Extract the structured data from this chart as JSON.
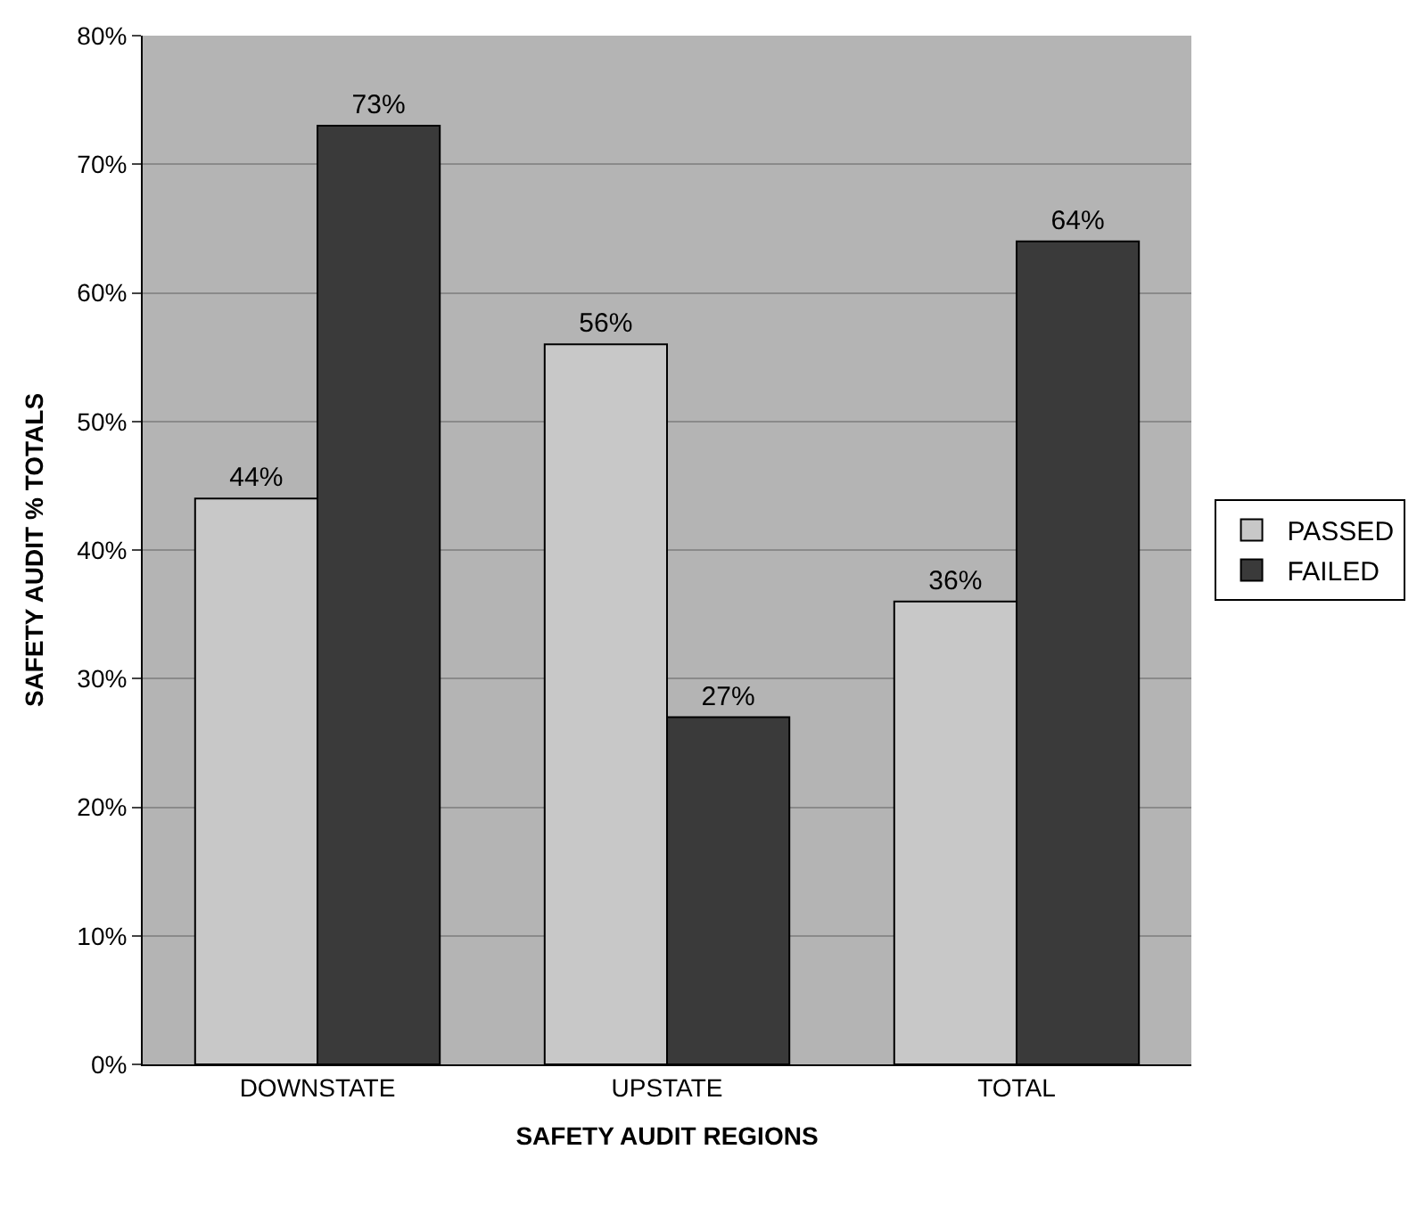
{
  "chart_data": {
    "type": "bar",
    "xlabel": "SAFETY AUDIT REGIONS",
    "ylabel": "SAFETY AUDIT % TOTALS",
    "categories": [
      "DOWNSTATE",
      "UPSTATE",
      "TOTAL"
    ],
    "series": [
      {
        "name": "PASSED",
        "color": "#c8c8c8",
        "values": [
          44,
          56,
          36
        ],
        "value_labels": [
          "44%",
          "56%",
          "36%"
        ]
      },
      {
        "name": "FAILED",
        "color": "#3a3a3a",
        "values": [
          73,
          27,
          64
        ],
        "value_labels": [
          "73%",
          "27%",
          "64%"
        ]
      }
    ],
    "ylim": [
      0,
      80
    ],
    "yticks": [
      {
        "value": 0,
        "label": "0%"
      },
      {
        "value": 10,
        "label": "10%"
      },
      {
        "value": 20,
        "label": "20%"
      },
      {
        "value": 30,
        "label": "30%"
      },
      {
        "value": 40,
        "label": "40%"
      },
      {
        "value": 50,
        "label": "50%"
      },
      {
        "value": 60,
        "label": "60%"
      },
      {
        "value": 70,
        "label": "70%"
      },
      {
        "value": 80,
        "label": "80%"
      }
    ],
    "grid": "y",
    "legend": "right"
  }
}
